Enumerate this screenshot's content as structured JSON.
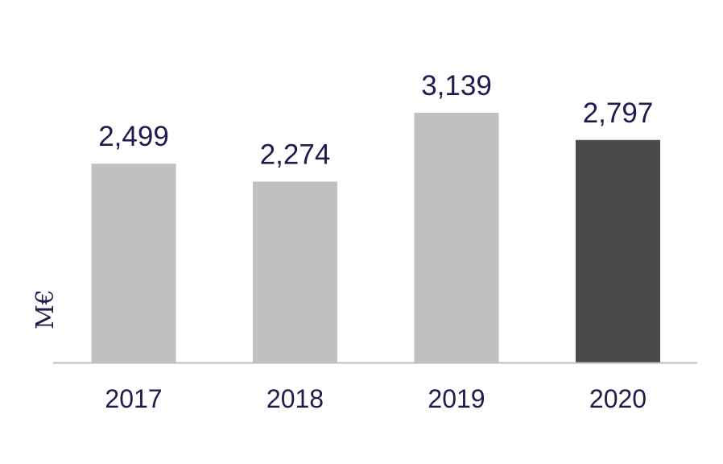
{
  "chart_data": {
    "type": "bar",
    "title": "",
    "xlabel": "",
    "ylabel": "M€",
    "categories": [
      "2017",
      "2018",
      "2019",
      "2020"
    ],
    "values": [
      2499,
      2274,
      3139,
      2797
    ],
    "value_labels": [
      "2,499",
      "2,274",
      "3,139",
      "2,797"
    ],
    "ylim": [
      0,
      3600
    ],
    "grid": false,
    "legend": "none",
    "colors": {
      "bar": "#c0c0c0",
      "highlight_bar": "#4a4a4a",
      "baseline": "#bdbdbd",
      "text": "#1f1b4d"
    },
    "highlight_index": 3
  }
}
